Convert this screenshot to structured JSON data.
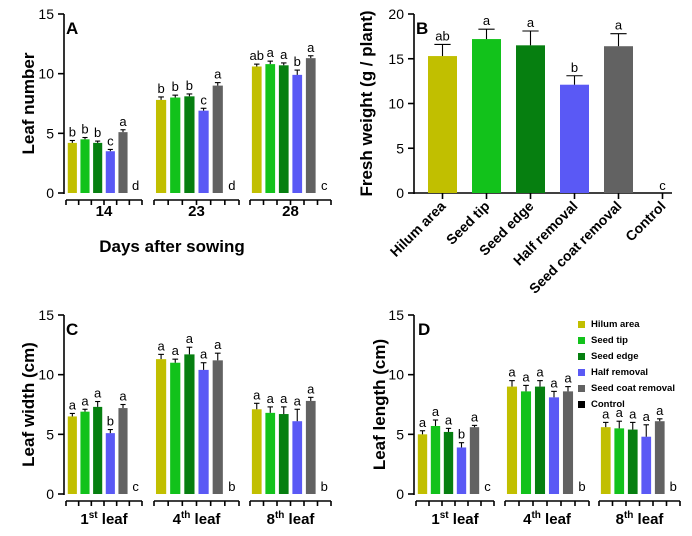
{
  "colors": {
    "Hilum area": "#c1bf00",
    "Seed tip": "#12c21b",
    "Seed edge": "#067f10",
    "Half removal": "#5a59f5",
    "Seed coat removal": "#626262",
    "Control": "#000000"
  },
  "chart_data": [
    {
      "type": "bar",
      "panel_label": "A",
      "ylabel": "Leaf number",
      "xlabel": "Days after sowing",
      "ylim": [
        0,
        15
      ],
      "yticks": [
        "0",
        "5",
        "10",
        "15"
      ],
      "groups": [
        {
          "label": "14",
          "values": [
            4.2,
            4.5,
            4.2,
            3.5,
            5.1,
            0
          ],
          "errors": [
            0.2,
            0.15,
            0.15,
            0.15,
            0.2,
            0
          ],
          "letters": [
            "b",
            "b",
            "b",
            "c",
            "a",
            "d"
          ]
        },
        {
          "label": "23",
          "values": [
            7.8,
            8.0,
            8.1,
            6.9,
            9.0,
            0
          ],
          "errors": [
            0.25,
            0.2,
            0.2,
            0.2,
            0.25,
            0
          ],
          "letters": [
            "b",
            "b",
            "b",
            "c",
            "a",
            "d"
          ]
        },
        {
          "label": "28",
          "values": [
            10.6,
            10.8,
            10.7,
            9.9,
            11.3,
            0
          ],
          "errors": [
            0.2,
            0.25,
            0.2,
            0.4,
            0.2,
            0
          ],
          "letters": [
            "ab",
            "a",
            "a",
            "b",
            "a",
            "c"
          ]
        }
      ]
    },
    {
      "type": "bar",
      "panel_label": "B",
      "ylabel": "Fresh weight (g / plant)",
      "ylim": [
        0,
        20
      ],
      "yticks": [
        "0",
        "5",
        "10",
        "15",
        "20"
      ],
      "categories": [
        "Hilum area",
        "Seed tip",
        "Seed edge",
        "Half removal",
        "Seed coat removal",
        "Control"
      ],
      "values": [
        15.3,
        17.2,
        16.5,
        12.1,
        16.4,
        0
      ],
      "errors": [
        1.3,
        1.1,
        1.6,
        1.0,
        1.4,
        0
      ],
      "letters": [
        "ab",
        "a",
        "a",
        "b",
        "a",
        "c"
      ]
    },
    {
      "type": "bar",
      "panel_label": "C",
      "ylabel": "Leaf width (cm)",
      "ylim": [
        0,
        15
      ],
      "yticks": [
        "0",
        "5",
        "10",
        "15"
      ],
      "groups": [
        {
          "label": "1",
          "sup": "st",
          "tail": " leaf",
          "values": [
            6.5,
            6.9,
            7.3,
            5.1,
            7.2,
            0
          ],
          "errors": [
            0.25,
            0.2,
            0.45,
            0.3,
            0.3,
            0
          ],
          "letters": [
            "a",
            "a",
            "a",
            "b",
            "a",
            "c"
          ]
        },
        {
          "label": "4",
          "sup": "th",
          "tail": " leaf",
          "values": [
            11.3,
            11.0,
            11.7,
            10.4,
            11.2,
            0
          ],
          "errors": [
            0.4,
            0.3,
            0.6,
            0.6,
            0.6,
            0
          ],
          "letters": [
            "a",
            "a",
            "a",
            "a",
            "a",
            "b"
          ]
        },
        {
          "label": "8",
          "sup": "th",
          "tail": " leaf",
          "values": [
            7.1,
            6.8,
            6.7,
            6.1,
            7.8,
            0
          ],
          "errors": [
            0.5,
            0.5,
            0.6,
            1.0,
            0.3,
            0
          ],
          "letters": [
            "a",
            "a",
            "a",
            "a",
            "a",
            "b"
          ]
        }
      ]
    },
    {
      "type": "bar",
      "panel_label": "D",
      "ylabel": "Leaf length (cm)",
      "ylim": [
        0,
        15
      ],
      "yticks": [
        "0",
        "5",
        "10",
        "15"
      ],
      "legend": [
        "Hilum area",
        "Seed tip",
        "Seed edge",
        "Half removal",
        "Seed coat removal",
        "Control"
      ],
      "legend_position": "top-right",
      "groups": [
        {
          "label": "1",
          "sup": "st",
          "tail": " leaf",
          "values": [
            5.0,
            5.7,
            5.2,
            3.9,
            5.6,
            0
          ],
          "errors": [
            0.3,
            0.5,
            0.3,
            0.4,
            0.15,
            0
          ],
          "letters": [
            "a",
            "a",
            "a",
            "b",
            "a",
            "c"
          ]
        },
        {
          "label": "4",
          "sup": "th",
          "tail": " leaf",
          "values": [
            9.0,
            8.6,
            9.0,
            8.1,
            8.6,
            0
          ],
          "errors": [
            0.5,
            0.5,
            0.5,
            0.5,
            0.4,
            0
          ],
          "letters": [
            "a",
            "a",
            "a",
            "a",
            "a",
            "b"
          ]
        },
        {
          "label": "8",
          "sup": "th",
          "tail": " leaf",
          "values": [
            5.6,
            5.5,
            5.4,
            4.8,
            6.1,
            0
          ],
          "errors": [
            0.4,
            0.6,
            0.6,
            1.0,
            0.2,
            0
          ],
          "letters": [
            "a",
            "a",
            "a",
            "a",
            "a",
            "b"
          ]
        }
      ]
    }
  ]
}
